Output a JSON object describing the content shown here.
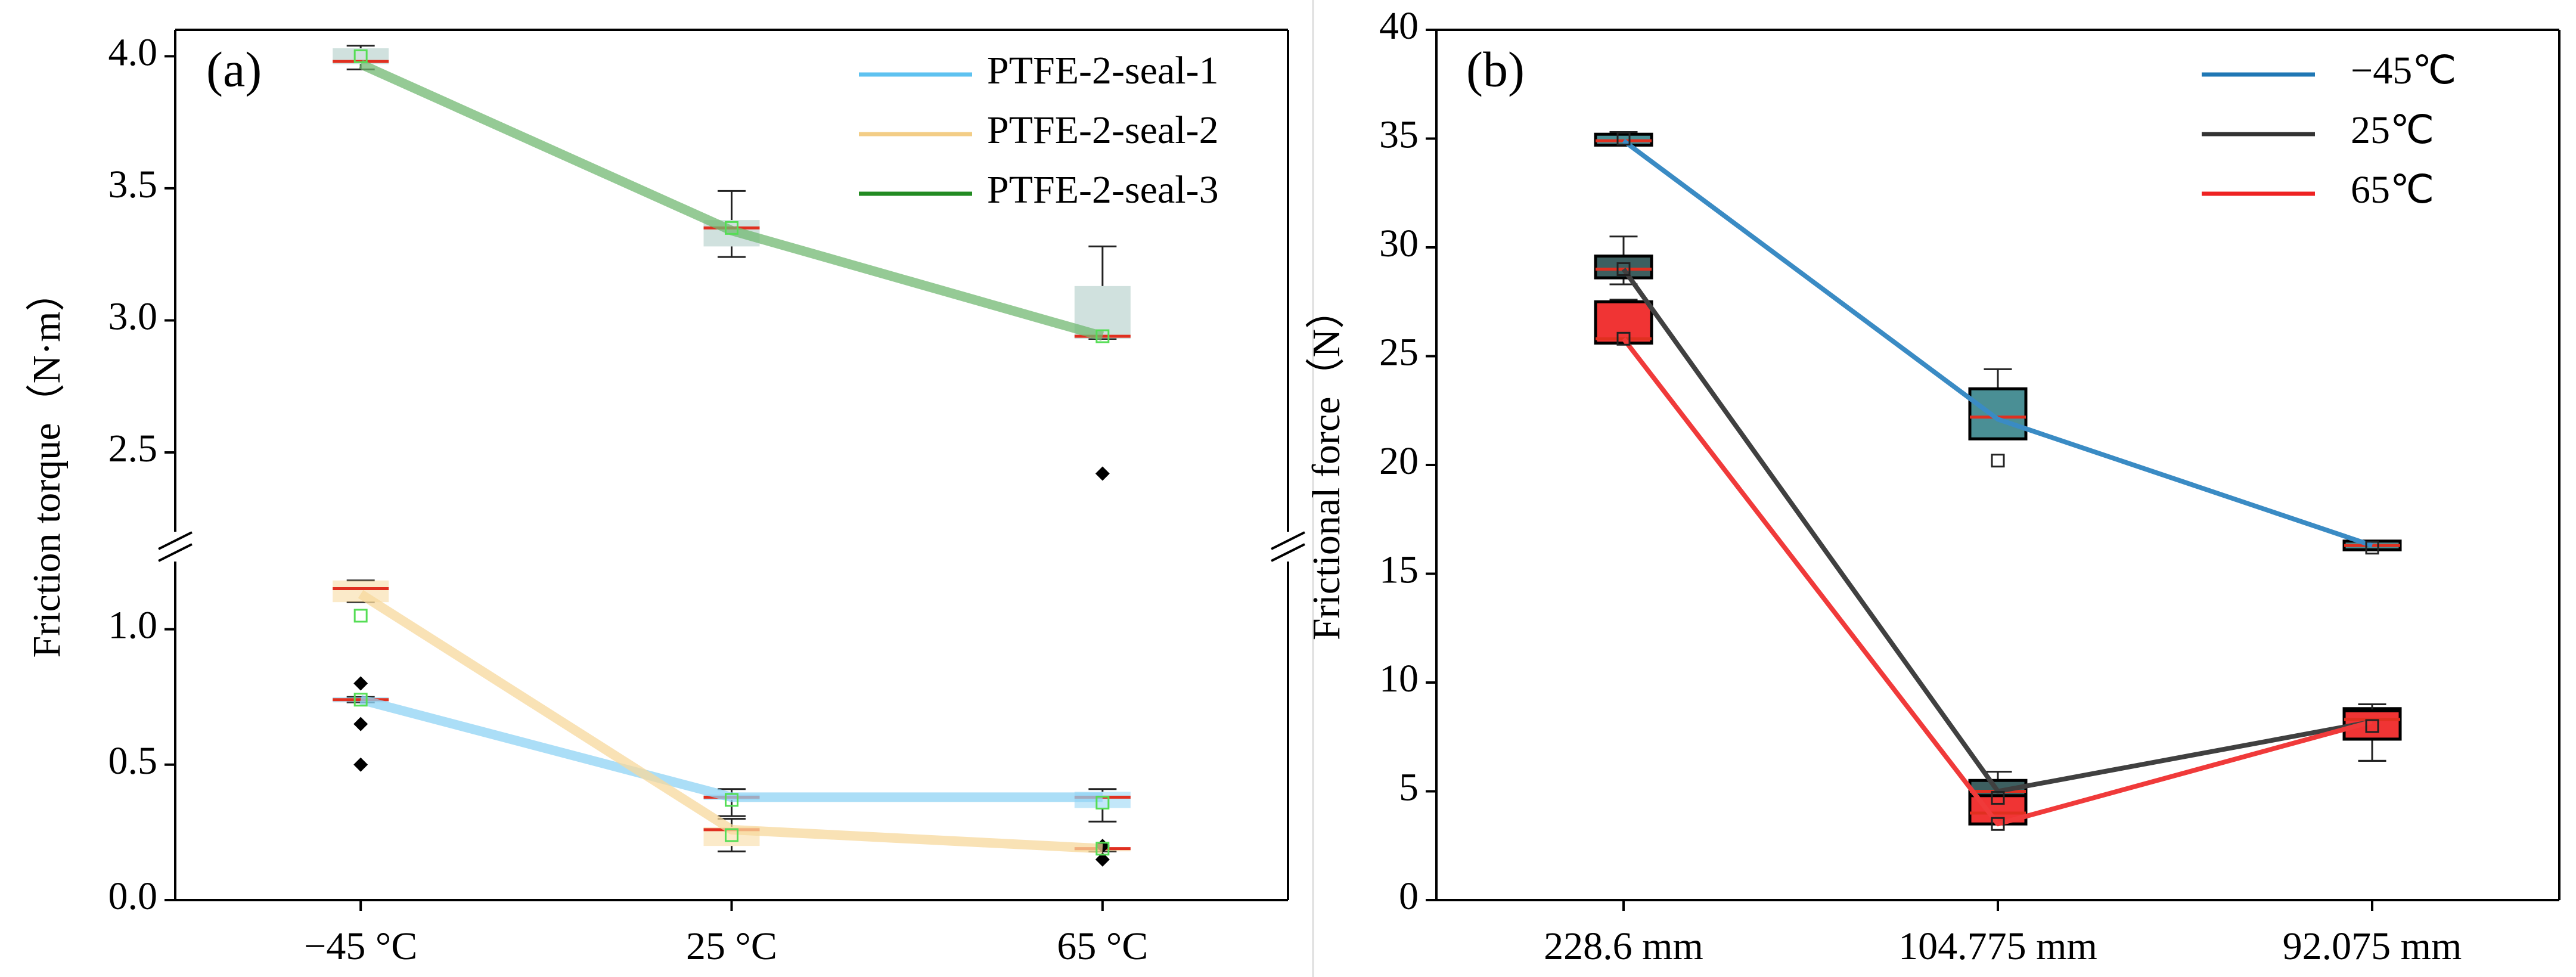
{
  "chart_data": [
    {
      "type": "box",
      "panel_label": "(a)",
      "ylabel": "Friction torque（N·m）",
      "categories": [
        "−45 °C",
        "25 °C",
        "65 °C"
      ],
      "y_segments": [
        {
          "ylim": [
            0,
            1.25
          ],
          "yticks": [
            {
              "value": 0,
              "label": "0.0"
            },
            0.5,
            {
              "value": 1,
              "label": "1.0"
            }
          ]
        },
        {
          "ylim": [
            2.2,
            4.1
          ],
          "yticks": [
            2.5,
            {
              "value": 3,
              "label": "3.0"
            },
            3.5,
            {
              "value": 4,
              "label": "4.0"
            }
          ]
        }
      ],
      "legend": "upper right",
      "median_color": "#e03020",
      "mean_color": "#55dd55",
      "series": [
        {
          "name": "PTFE-2-seal-1",
          "color": "#8fd3f4",
          "legend_color": "#5ec2f0",
          "box_color": "#8fd3f4",
          "values": [
            0.74,
            0.38,
            0.38
          ],
          "boxes": [
            {
              "low": 0.73,
              "q1": 0.73,
              "median": 0.74,
              "q3": 0.75,
              "high": 0.75,
              "mean": 0.74,
              "outliers": [
                0.8,
                0.65,
                0.5
              ]
            },
            {
              "low": 0.31,
              "q1": 0.37,
              "median": 0.38,
              "q3": 0.39,
              "high": 0.41,
              "mean": 0.37,
              "outliers": []
            },
            {
              "low": 0.29,
              "q1": 0.34,
              "median": 0.38,
              "q3": 0.4,
              "high": 0.41,
              "mean": 0.36,
              "outliers": []
            }
          ]
        },
        {
          "name": "PTFE-2-seal-2",
          "color": "#f7d89c",
          "legend_color": "#f3cd86",
          "box_color": "#f7d89c",
          "values": [
            1.13,
            0.26,
            0.19
          ],
          "boxes": [
            {
              "low": 1.1,
              "q1": 1.1,
              "median": 1.15,
              "q3": 1.18,
              "high": 1.18,
              "mean": 1.05,
              "outliers": []
            },
            {
              "low": 0.18,
              "q1": 0.2,
              "median": 0.26,
              "q3": 0.27,
              "high": 0.3,
              "mean": 0.24,
              "outliers": []
            },
            {
              "low": 0.18,
              "q1": 0.18,
              "median": 0.19,
              "q3": 0.19,
              "high": 0.19,
              "mean": 0.19,
              "outliers": [
                0.2,
                0.15
              ]
            }
          ]
        },
        {
          "name": "PTFE-2-seal-3",
          "color": "#72b872",
          "legend_color": "#228b22",
          "box_color": "#a9c9c3",
          "values": [
            3.97,
            3.34,
            2.94
          ],
          "boxes": [
            {
              "low": 3.95,
              "q1": 3.97,
              "median": 3.98,
              "q3": 4.03,
              "high": 4.04,
              "mean": 4.0,
              "outliers": []
            },
            {
              "low": 3.24,
              "q1": 3.28,
              "median": 3.35,
              "q3": 3.38,
              "high": 3.49,
              "mean": 3.35,
              "outliers": []
            },
            {
              "low": 2.93,
              "q1": 2.93,
              "median": 2.94,
              "q3": 3.13,
              "high": 3.28,
              "mean": 2.94,
              "outliers": [
                2.42
              ]
            }
          ]
        }
      ]
    },
    {
      "type": "box",
      "panel_label": "(b)",
      "ylabel": "Frictional force（N）",
      "categories": [
        "228.6 mm",
        "104.775 mm",
        "92.075 mm"
      ],
      "ylim": [
        0,
        40
      ],
      "yticks": [
        0,
        5,
        10,
        15,
        20,
        25,
        30,
        35,
        40
      ],
      "legend": "upper right",
      "median_color": "#e03020",
      "mean_color": "#222222",
      "box_edge": "#000000",
      "series": [
        {
          "name": "−45℃",
          "color": "#3a8bc4",
          "legend_color": "#1f77b4",
          "box_color": "#4a8f95",
          "values": [
            34.9,
            22.1,
            16.3
          ],
          "boxes": [
            {
              "low": 34.7,
              "q1": 34.7,
              "median": 34.9,
              "q3": 35.2,
              "high": 35.3,
              "mean": 35.0,
              "outliers": []
            },
            {
              "low": 21.2,
              "q1": 21.2,
              "median": 22.2,
              "q3": 23.5,
              "high": 24.4,
              "mean": 20.2,
              "outliers": []
            },
            {
              "low": 16.1,
              "q1": 16.1,
              "median": 16.3,
              "q3": 16.5,
              "high": 16.5,
              "mean": 16.2,
              "outliers": []
            }
          ]
        },
        {
          "name": "25℃",
          "color": "#404040",
          "legend_color": "#333333",
          "box_color": "#3d5f60",
          "values": [
            29.0,
            5.0,
            8.2
          ],
          "boxes": [
            {
              "low": 28.3,
              "q1": 28.6,
              "median": 29.0,
              "q3": 29.6,
              "high": 30.5,
              "mean": 29.0,
              "outliers": []
            },
            {
              "low": 3.5,
              "q1": 4.0,
              "median": 5.0,
              "q3": 5.5,
              "high": 5.9,
              "mean": 4.7,
              "outliers": []
            },
            {
              "low": 6.4,
              "q1": 7.4,
              "median": 8.2,
              "q3": 8.8,
              "high": 9.0,
              "mean": 8.0,
              "outliers": []
            }
          ]
        },
        {
          "name": "65℃",
          "color": "#f03a3a",
          "legend_color": "#ee2222",
          "box_color": "#f03434",
          "values": [
            25.8,
            3.5,
            8.2
          ],
          "boxes": [
            {
              "low": 25.6,
              "q1": 25.6,
              "median": 25.8,
              "q3": 27.5,
              "high": 27.6,
              "mean": 25.8,
              "outliers": []
            },
            {
              "low": 3.5,
              "q1": 3.5,
              "median": 4.0,
              "q3": 4.8,
              "high": 4.8,
              "mean": 3.5,
              "outliers": []
            },
            {
              "low": 6.4,
              "q1": 7.4,
              "median": 8.3,
              "q3": 8.7,
              "high": 9.0,
              "mean": 8.0,
              "outliers": []
            }
          ]
        }
      ]
    }
  ]
}
